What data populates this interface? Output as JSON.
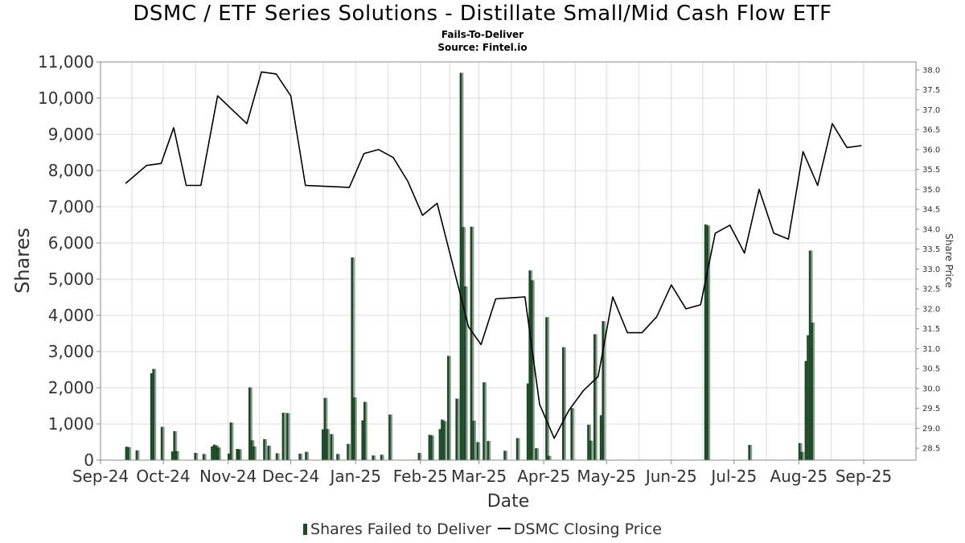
{
  "header": {
    "title": "DSMC / ETF Series Solutions - Distillate Small/Mid Cash Flow ETF",
    "subtitle": "Fails-To-Deliver",
    "source": "Source: Fintel.io"
  },
  "legend": {
    "bars_label": "Shares Failed to Deliver",
    "line_label": "DSMC Closing Price"
  },
  "colors": {
    "bar_fill": "#1c4a27",
    "bar_shadow": "#8a9a8c",
    "line": "#000000",
    "grid": "#dcdcdc",
    "axis_text": "#333333"
  },
  "chart_data": {
    "type": "bar",
    "title": "DSMC / ETF Series Solutions - Distillate Small/Mid Cash Flow ETF",
    "subtitle": "Fails-To-Deliver",
    "xlabel": "Date",
    "ylabel": "Shares",
    "y2label": "Share Price",
    "grid": true,
    "legend_position": "bottom",
    "x_range": [
      "2024-09-01",
      "2025-09-26"
    ],
    "ylim": [
      0,
      11000
    ],
    "yticks": [
      0,
      1000,
      2000,
      3000,
      4000,
      5000,
      6000,
      7000,
      8000,
      9000,
      10000,
      11000
    ],
    "ytick_labels": [
      "0",
      "1,000",
      "2,000",
      "3,000",
      "4,000",
      "5,000",
      "6,000",
      "7,000",
      "8,000",
      "9,000",
      "10,000",
      "11,000"
    ],
    "y2lim": [
      28.2,
      38.2
    ],
    "y2ticks": [
      28.5,
      29.0,
      29.5,
      30.0,
      30.5,
      31.0,
      31.5,
      32.0,
      32.5,
      33.0,
      33.5,
      34.0,
      34.5,
      35.0,
      35.5,
      36.0,
      36.5,
      37.0,
      37.5,
      38.0
    ],
    "y2tick_labels": [
      "28.5",
      "29.0",
      "29.5",
      "30.0",
      "30.5",
      "31.0",
      "31.5",
      "32.0",
      "32.5",
      "33.0",
      "33.5",
      "34.0",
      "34.5",
      "35.0",
      "35.5",
      "36.0",
      "36.5",
      "37.0",
      "37.5",
      "38.0"
    ],
    "xticks": [
      "2024-09-01",
      "2024-10-01",
      "2024-11-01",
      "2024-12-01",
      "2025-01-01",
      "2025-02-01",
      "2025-03-01",
      "2025-04-01",
      "2025-05-01",
      "2025-06-01",
      "2025-07-01",
      "2025-08-01",
      "2025-09-01"
    ],
    "xtick_labels": [
      "Sep-24",
      "Oct-24",
      "Nov-24",
      "Dec-24",
      "Jan-25",
      "Feb-25",
      "Mar-25",
      "Apr-25",
      "May-25",
      "Jun-25",
      "Jul-25",
      "Aug-25",
      "Sep-25"
    ],
    "series": [
      {
        "name": "Shares Failed to Deliver",
        "kind": "bar",
        "axis": "left",
        "points": [
          {
            "x": "2024-09-13",
            "y": 370
          },
          {
            "x": "2024-09-14",
            "y": 360
          },
          {
            "x": "2024-09-18",
            "y": 270
          },
          {
            "x": "2024-09-25",
            "y": 2400
          },
          {
            "x": "2024-09-26",
            "y": 2520
          },
          {
            "x": "2024-09-30",
            "y": 920
          },
          {
            "x": "2024-10-05",
            "y": 240
          },
          {
            "x": "2024-10-06",
            "y": 800
          },
          {
            "x": "2024-10-07",
            "y": 250
          },
          {
            "x": "2024-10-16",
            "y": 200
          },
          {
            "x": "2024-10-20",
            "y": 170
          },
          {
            "x": "2024-10-24",
            "y": 380
          },
          {
            "x": "2024-10-25",
            "y": 430
          },
          {
            "x": "2024-10-26",
            "y": 400
          },
          {
            "x": "2024-10-27",
            "y": 350
          },
          {
            "x": "2024-11-01",
            "y": 180
          },
          {
            "x": "2024-11-02",
            "y": 1040
          },
          {
            "x": "2024-11-05",
            "y": 310
          },
          {
            "x": "2024-11-06",
            "y": 300
          },
          {
            "x": "2024-11-11",
            "y": 2010
          },
          {
            "x": "2024-11-12",
            "y": 550
          },
          {
            "x": "2024-11-13",
            "y": 380
          },
          {
            "x": "2024-11-18",
            "y": 580
          },
          {
            "x": "2024-11-20",
            "y": 400
          },
          {
            "x": "2024-11-24",
            "y": 190
          },
          {
            "x": "2024-11-27",
            "y": 1310
          },
          {
            "x": "2024-11-29",
            "y": 1300
          },
          {
            "x": "2024-12-05",
            "y": 180
          },
          {
            "x": "2024-12-08",
            "y": 230
          },
          {
            "x": "2024-12-16",
            "y": 850
          },
          {
            "x": "2024-12-17",
            "y": 1720
          },
          {
            "x": "2024-12-18",
            "y": 860
          },
          {
            "x": "2024-12-20",
            "y": 720
          },
          {
            "x": "2024-12-23",
            "y": 170
          },
          {
            "x": "2024-12-28",
            "y": 450
          },
          {
            "x": "2024-12-30",
            "y": 5600
          },
          {
            "x": "2024-12-31",
            "y": 1730
          },
          {
            "x": "2025-01-04",
            "y": 1100
          },
          {
            "x": "2025-01-05",
            "y": 1610
          },
          {
            "x": "2025-01-09",
            "y": 130
          },
          {
            "x": "2025-01-13",
            "y": 150
          },
          {
            "x": "2025-01-17",
            "y": 1260
          },
          {
            "x": "2025-01-31",
            "y": 200
          },
          {
            "x": "2025-02-05",
            "y": 700
          },
          {
            "x": "2025-02-06",
            "y": 680
          },
          {
            "x": "2025-02-10",
            "y": 860
          },
          {
            "x": "2025-02-11",
            "y": 1120
          },
          {
            "x": "2025-02-12",
            "y": 1080
          },
          {
            "x": "2025-02-14",
            "y": 2880
          },
          {
            "x": "2025-02-18",
            "y": 1700
          },
          {
            "x": "2025-02-20",
            "y": 10700
          },
          {
            "x": "2025-02-21",
            "y": 6440
          },
          {
            "x": "2025-02-22",
            "y": 4800
          },
          {
            "x": "2025-02-25",
            "y": 6450
          },
          {
            "x": "2025-02-26",
            "y": 1090
          },
          {
            "x": "2025-02-28",
            "y": 500
          },
          {
            "x": "2025-03-03",
            "y": 2150
          },
          {
            "x": "2025-03-05",
            "y": 530
          },
          {
            "x": "2025-03-13",
            "y": 260
          },
          {
            "x": "2025-03-19",
            "y": 610
          },
          {
            "x": "2025-03-24",
            "y": 2120
          },
          {
            "x": "2025-03-25",
            "y": 5240
          },
          {
            "x": "2025-03-26",
            "y": 4970
          },
          {
            "x": "2025-03-28",
            "y": 330
          },
          {
            "x": "2025-04-02",
            "y": 3950
          },
          {
            "x": "2025-04-03",
            "y": 120
          },
          {
            "x": "2025-04-10",
            "y": 3120
          },
          {
            "x": "2025-04-14",
            "y": 1440
          },
          {
            "x": "2025-04-22",
            "y": 980
          },
          {
            "x": "2025-04-23",
            "y": 540
          },
          {
            "x": "2025-04-25",
            "y": 3480
          },
          {
            "x": "2025-04-28",
            "y": 1240
          },
          {
            "x": "2025-04-29",
            "y": 3840
          },
          {
            "x": "2025-06-17",
            "y": 6510
          },
          {
            "x": "2025-06-18",
            "y": 6480
          },
          {
            "x": "2025-07-08",
            "y": 420
          },
          {
            "x": "2025-08-01",
            "y": 470
          },
          {
            "x": "2025-08-02",
            "y": 230
          },
          {
            "x": "2025-08-04",
            "y": 2740
          },
          {
            "x": "2025-08-05",
            "y": 3450
          },
          {
            "x": "2025-08-06",
            "y": 5790
          },
          {
            "x": "2025-08-07",
            "y": 3800
          }
        ]
      },
      {
        "name": "DSMC Closing Price",
        "kind": "line",
        "axis": "right",
        "points": [
          {
            "x": "2024-09-13",
            "y": 35.15
          },
          {
            "x": "2024-09-23",
            "y": 35.6
          },
          {
            "x": "2024-09-30",
            "y": 35.65
          },
          {
            "x": "2024-10-06",
            "y": 36.55
          },
          {
            "x": "2024-10-12",
            "y": 35.1
          },
          {
            "x": "2024-10-19",
            "y": 35.1
          },
          {
            "x": "2024-10-27",
            "y": 37.35
          },
          {
            "x": "2024-11-03",
            "y": 37.0
          },
          {
            "x": "2024-11-10",
            "y": 36.65
          },
          {
            "x": "2024-11-17",
            "y": 37.95
          },
          {
            "x": "2024-11-24",
            "y": 37.9
          },
          {
            "x": "2024-12-01",
            "y": 37.35
          },
          {
            "x": "2024-12-08",
            "y": 35.1
          },
          {
            "x": "2024-12-29",
            "y": 35.05
          },
          {
            "x": "2025-01-05",
            "y": 35.9
          },
          {
            "x": "2025-01-12",
            "y": 36.0
          },
          {
            "x": "2025-01-19",
            "y": 35.8
          },
          {
            "x": "2025-01-26",
            "y": 35.2
          },
          {
            "x": "2025-02-02",
            "y": 34.35
          },
          {
            "x": "2025-02-09",
            "y": 34.65
          },
          {
            "x": "2025-02-24",
            "y": 31.55
          },
          {
            "x": "2025-03-02",
            "y": 31.1
          },
          {
            "x": "2025-03-09",
            "y": 32.25
          },
          {
            "x": "2025-03-23",
            "y": 32.3
          },
          {
            "x": "2025-03-30",
            "y": 29.6
          },
          {
            "x": "2025-04-06",
            "y": 28.75
          },
          {
            "x": "2025-04-13",
            "y": 29.45
          },
          {
            "x": "2025-04-20",
            "y": 29.95
          },
          {
            "x": "2025-04-27",
            "y": 30.3
          },
          {
            "x": "2025-05-04",
            "y": 32.3
          },
          {
            "x": "2025-05-11",
            "y": 31.4
          },
          {
            "x": "2025-05-18",
            "y": 31.4
          },
          {
            "x": "2025-05-25",
            "y": 31.8
          },
          {
            "x": "2025-06-01",
            "y": 32.6
          },
          {
            "x": "2025-06-08",
            "y": 32.0
          },
          {
            "x": "2025-06-15",
            "y": 32.1
          },
          {
            "x": "2025-06-22",
            "y": 33.9
          },
          {
            "x": "2025-06-29",
            "y": 34.1
          },
          {
            "x": "2025-07-06",
            "y": 33.4
          },
          {
            "x": "2025-07-13",
            "y": 35.0
          },
          {
            "x": "2025-07-20",
            "y": 33.9
          },
          {
            "x": "2025-07-27",
            "y": 33.75
          },
          {
            "x": "2025-08-03",
            "y": 35.95
          },
          {
            "x": "2025-08-10",
            "y": 35.1
          },
          {
            "x": "2025-08-17",
            "y": 36.65
          },
          {
            "x": "2025-08-24",
            "y": 36.05
          },
          {
            "x": "2025-08-31",
            "y": 36.1
          }
        ]
      }
    ]
  }
}
